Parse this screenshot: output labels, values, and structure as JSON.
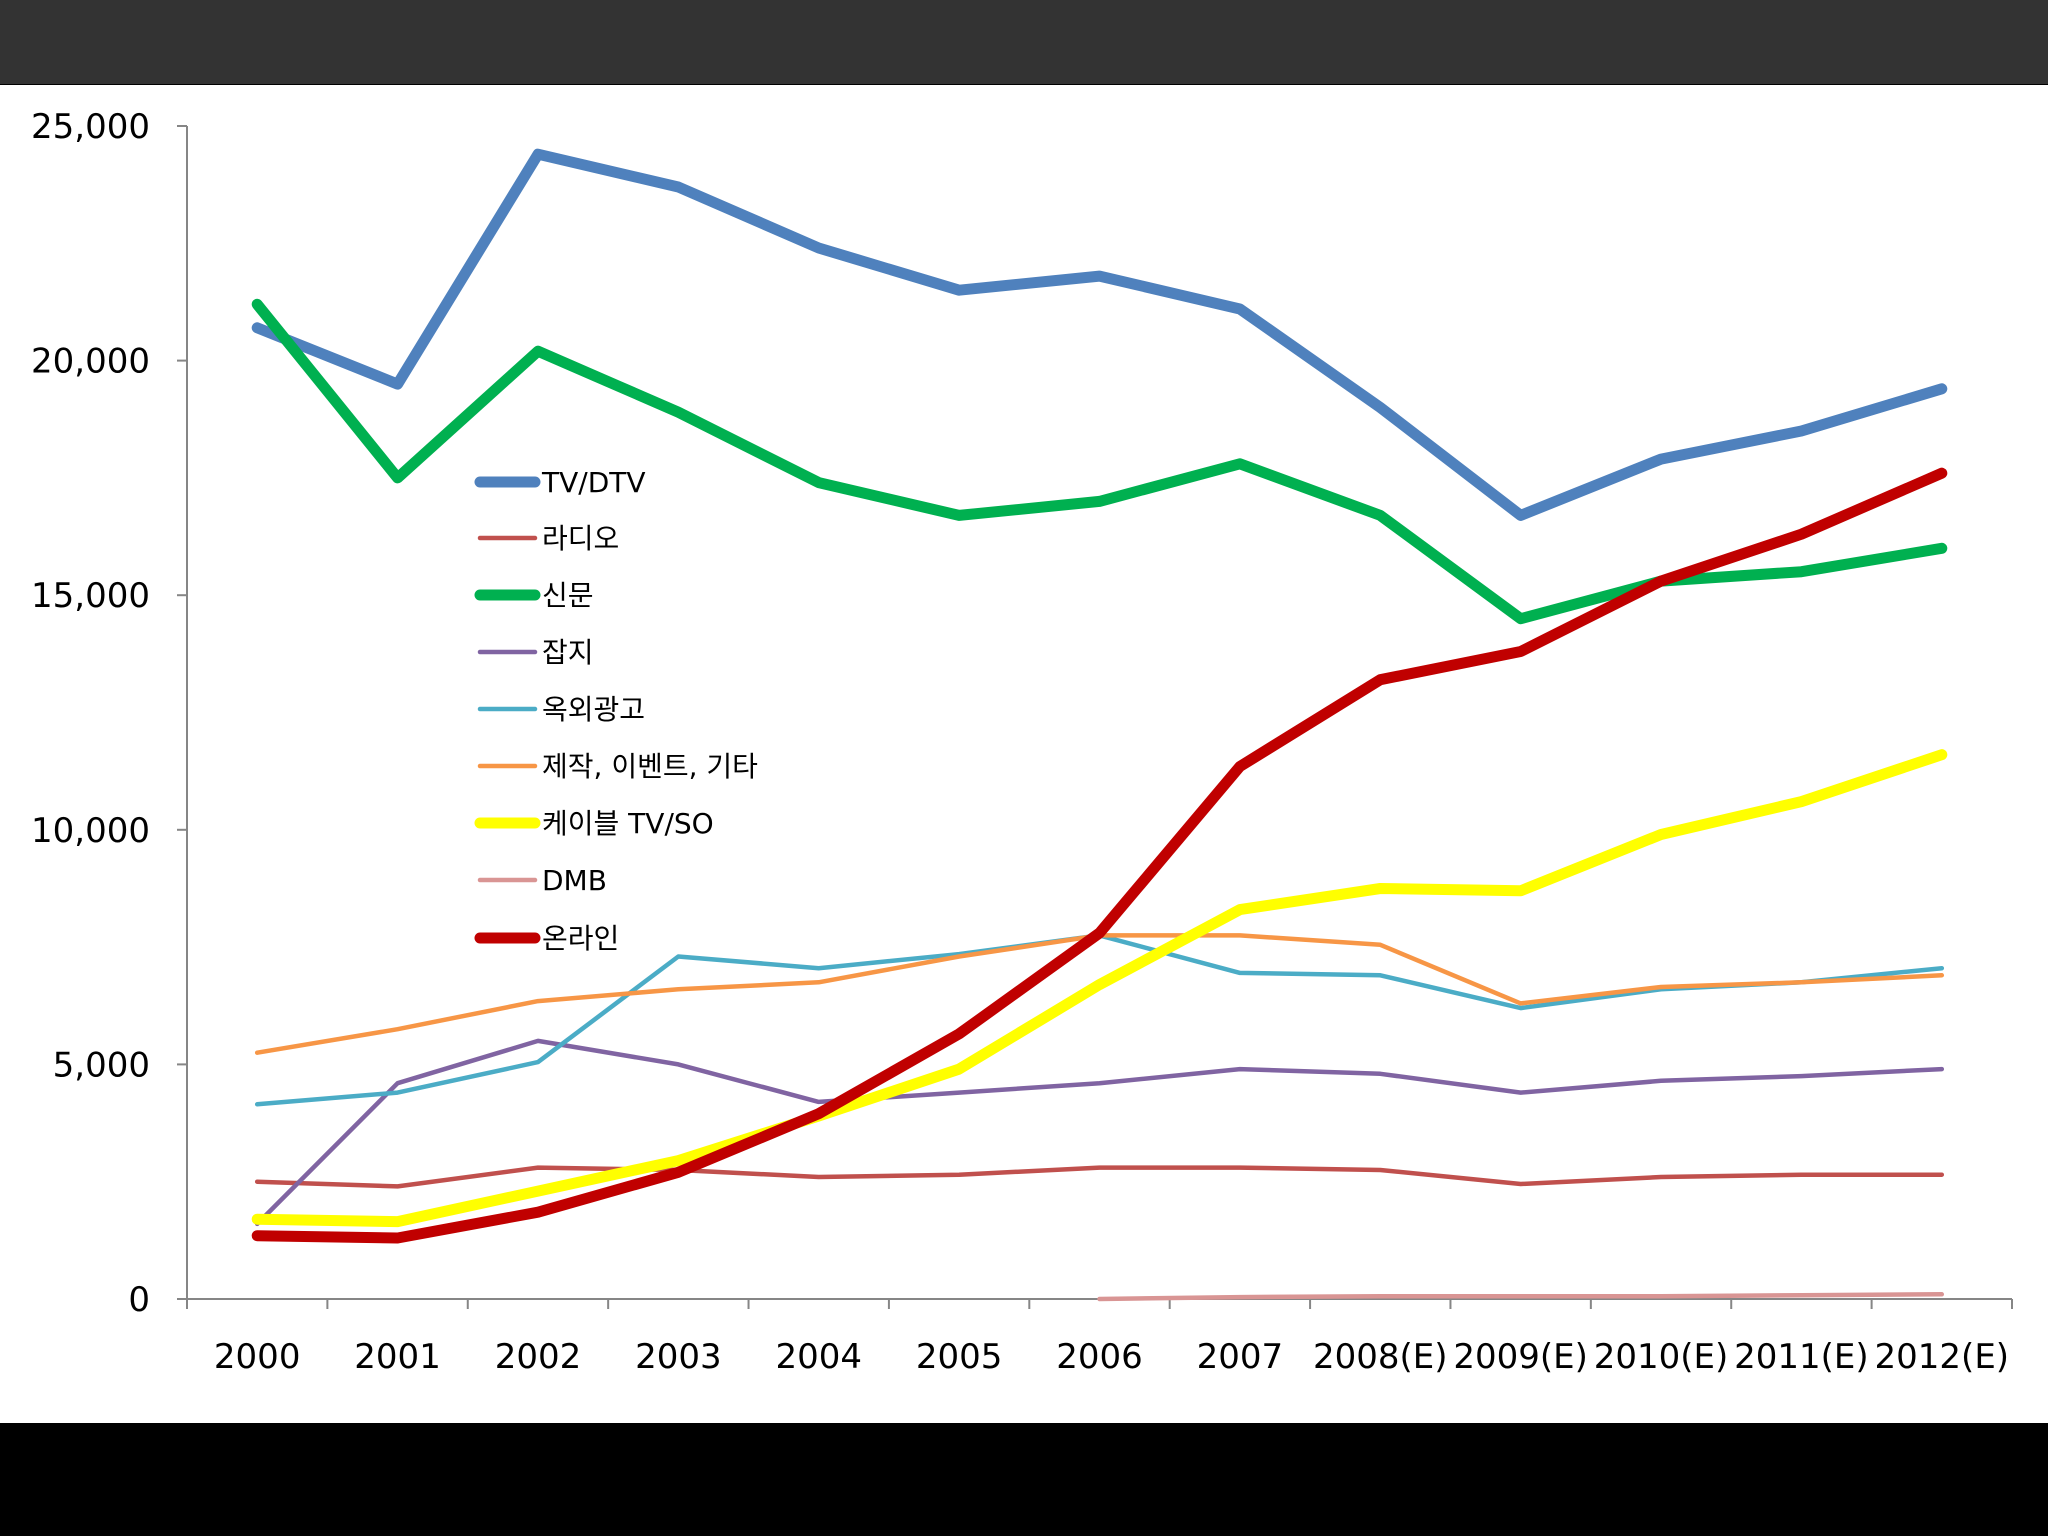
{
  "chart_data": {
    "type": "line",
    "title": "",
    "xlabel": "",
    "ylabel": "",
    "categories": [
      "2000",
      "2001",
      "2002",
      "2003",
      "2004",
      "2005",
      "2006",
      "2007",
      "2008(E)",
      "2009(E)",
      "2010(E)",
      "2011(E)",
      "2012(E)"
    ],
    "ylim": [
      0,
      25000
    ],
    "yticks": [
      {
        "value": 0,
        "label": "0"
      },
      {
        "value": 5000,
        "label": "5,000"
      },
      {
        "value": 10000,
        "label": "10,000"
      },
      {
        "value": 15000,
        "label": "15,000"
      },
      {
        "value": 20000,
        "label": "20,000"
      },
      {
        "value": 25000,
        "label": "25,000"
      }
    ],
    "grid": false,
    "legend_position": "center-left",
    "series": [
      {
        "name": "TV/DTV",
        "color": "#4F81BD",
        "weight": "heavy",
        "values": [
          20700,
          19500,
          24400,
          23700,
          22400,
          21500,
          21800,
          21100,
          19000,
          16700,
          17900,
          18500,
          19400
        ]
      },
      {
        "name": "라디오",
        "color": "#C0504D",
        "weight": "thin",
        "values": [
          2500,
          2400,
          2800,
          2750,
          2600,
          2650,
          2800,
          2800,
          2750,
          2450,
          2600,
          2650,
          2650
        ]
      },
      {
        "name": "신문",
        "color": "#00B050",
        "weight": "heavy",
        "values": [
          21200,
          17500,
          20200,
          18900,
          17400,
          16700,
          17000,
          17800,
          16700,
          14500,
          15300,
          15500,
          16000
        ]
      },
      {
        "name": "잡지",
        "color": "#8064A2",
        "weight": "thin",
        "values": [
          1600,
          4600,
          5500,
          5000,
          4200,
          4400,
          4600,
          4900,
          4800,
          4400,
          4650,
          4750,
          4900
        ]
      },
      {
        "name": "옥외광고",
        "color": "#4BACC6",
        "weight": "thin",
        "values": [
          4150,
          4400,
          5050,
          7300,
          7050,
          7350,
          7750,
          6950,
          6900,
          6200,
          6600,
          6750,
          7050
        ]
      },
      {
        "name": "제작, 이벤트, 기타",
        "color": "#F79646",
        "weight": "thin",
        "values": [
          5250,
          5750,
          6350,
          6600,
          6750,
          7300,
          7750,
          7750,
          7550,
          6300,
          6650,
          6750,
          6900
        ]
      },
      {
        "name": "케이블 TV/SO",
        "color": "#FFFF00",
        "weight": "heavy",
        "values": [
          1700,
          1650,
          2300,
          2950,
          3900,
          4900,
          6700,
          8300,
          8750,
          8700,
          9900,
          10600,
          11600
        ]
      },
      {
        "name": "DMB",
        "color": "#D99594",
        "weight": "thin",
        "values": [
          null,
          null,
          null,
          null,
          null,
          null,
          0,
          40,
          60,
          60,
          60,
          80,
          100
        ]
      },
      {
        "name": "온라인",
        "color": "#C00000",
        "weight": "heavy",
        "values": [
          1350,
          1300,
          1850,
          2700,
          3950,
          5650,
          7800,
          11350,
          13200,
          13800,
          15300,
          16300,
          17600
        ]
      }
    ]
  }
}
